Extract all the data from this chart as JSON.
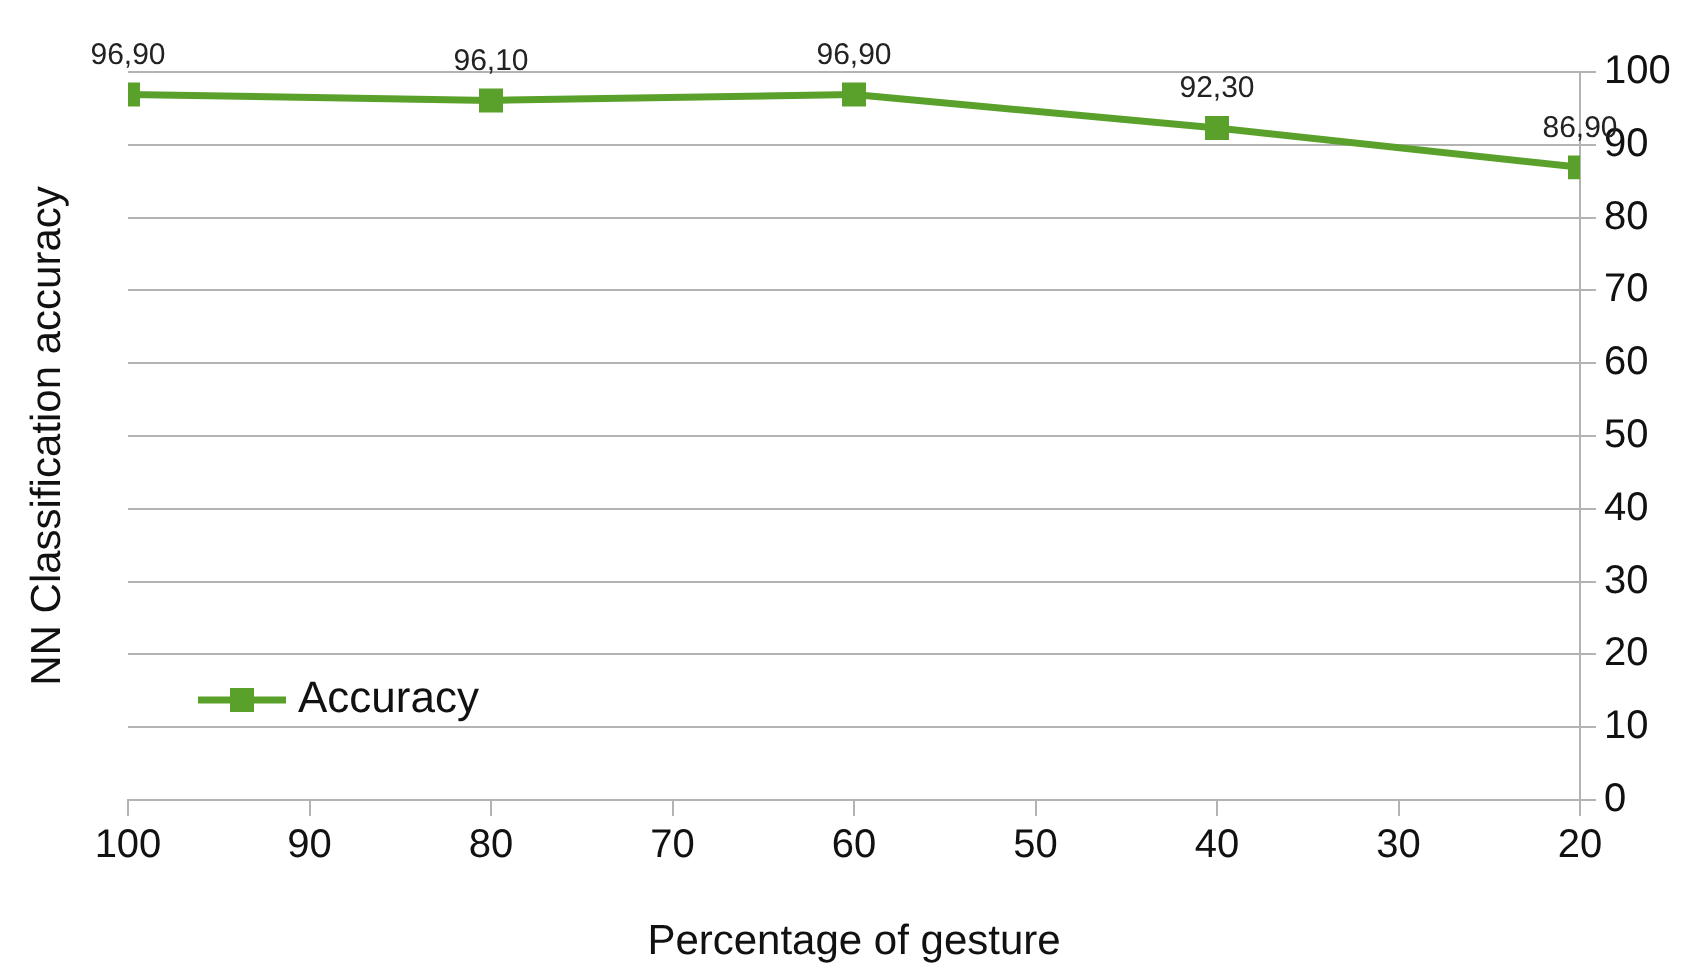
{
  "chart_data": {
    "type": "line",
    "xlabel": "Percentage of gesture",
    "ylabel": "NN Classification accuracy",
    "x": [
      100,
      80,
      60,
      40,
      20
    ],
    "series": [
      {
        "name": "Accuracy",
        "color": "#5aa12b",
        "values": [
          96.9,
          96.1,
          96.9,
          92.3,
          86.9
        ],
        "value_labels": [
          "96,90",
          "96,10",
          "96,90",
          "92,30",
          "86,90"
        ]
      }
    ],
    "xlim": [
      100,
      20
    ],
    "xticks": [
      100,
      90,
      80,
      70,
      60,
      50,
      40,
      30,
      20
    ],
    "ylim": [
      0,
      100
    ],
    "yticks": [
      0,
      10,
      20,
      30,
      40,
      50,
      60,
      70,
      80,
      90,
      100
    ],
    "grid": "y",
    "legend": "bottom left",
    "marker": "square",
    "line_style": "solid"
  }
}
